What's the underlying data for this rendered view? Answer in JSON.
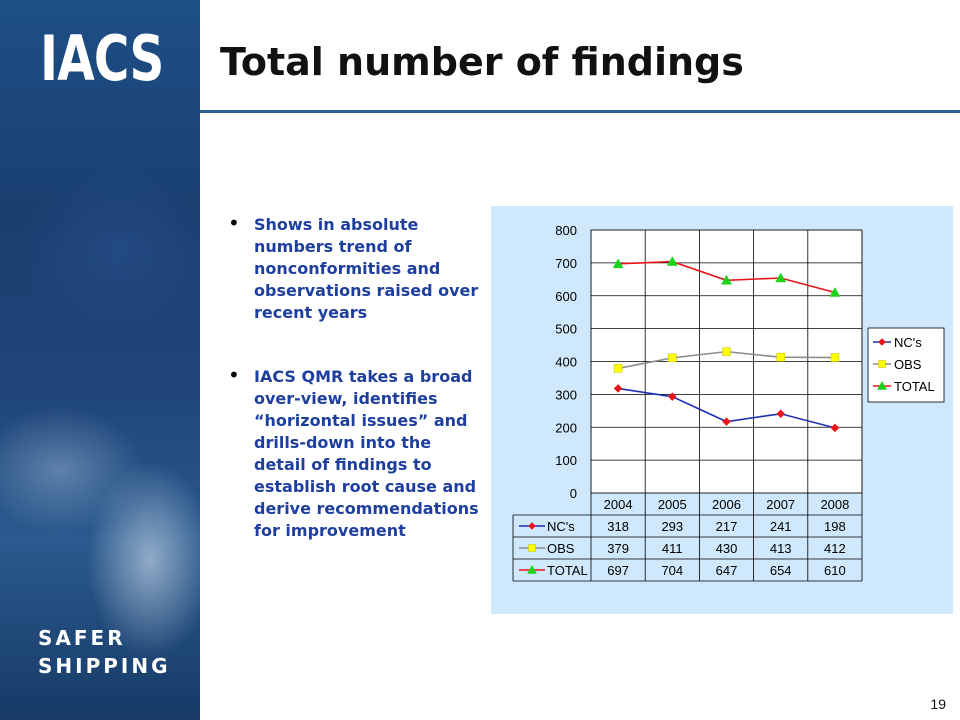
{
  "brand": {
    "logo_text": "IACS",
    "tagline_line1": "SAFER",
    "tagline_line2": "SHIPPING"
  },
  "slide": {
    "title": "Total number of findings",
    "page_number": "19",
    "bullets": [
      "Shows in absolute numbers trend of nonconformities and observations raised over recent years",
      "IACS QMR takes a broad over-view, identifies “horizontal issues” and drills-down into the detail of findings to establish root cause and derive recommendations for improvement"
    ]
  },
  "colors": {
    "accent": "#2d5f93",
    "bullet_text": "#1f3f9e",
    "chart_bg": "#cfe8fb"
  },
  "chart_data": {
    "type": "line",
    "categories": [
      "2004",
      "2005",
      "2006",
      "2007",
      "2008"
    ],
    "ylim": [
      0,
      800
    ],
    "yticks": [
      0,
      100,
      200,
      300,
      400,
      500,
      600,
      700,
      800
    ],
    "grid": true,
    "legend_position": "right",
    "series": [
      {
        "name": "NC's",
        "table_label": "NC's",
        "values": [
          318,
          293,
          217,
          241,
          198
        ],
        "line_color": "#1f2fb0",
        "marker": "diamond",
        "marker_color": "#e8141b"
      },
      {
        "name": "OBS",
        "table_label": "OBS",
        "values": [
          379,
          411,
          430,
          413,
          412
        ],
        "line_color": "#8c8c8c",
        "marker": "square",
        "marker_color": "#ffff00"
      },
      {
        "name": "TOTAL",
        "table_label": "TOTAL",
        "values": [
          697,
          704,
          647,
          654,
          610
        ],
        "line_color": "#e8141b",
        "marker": "triangle",
        "marker_color": "#1bd31b"
      }
    ]
  }
}
